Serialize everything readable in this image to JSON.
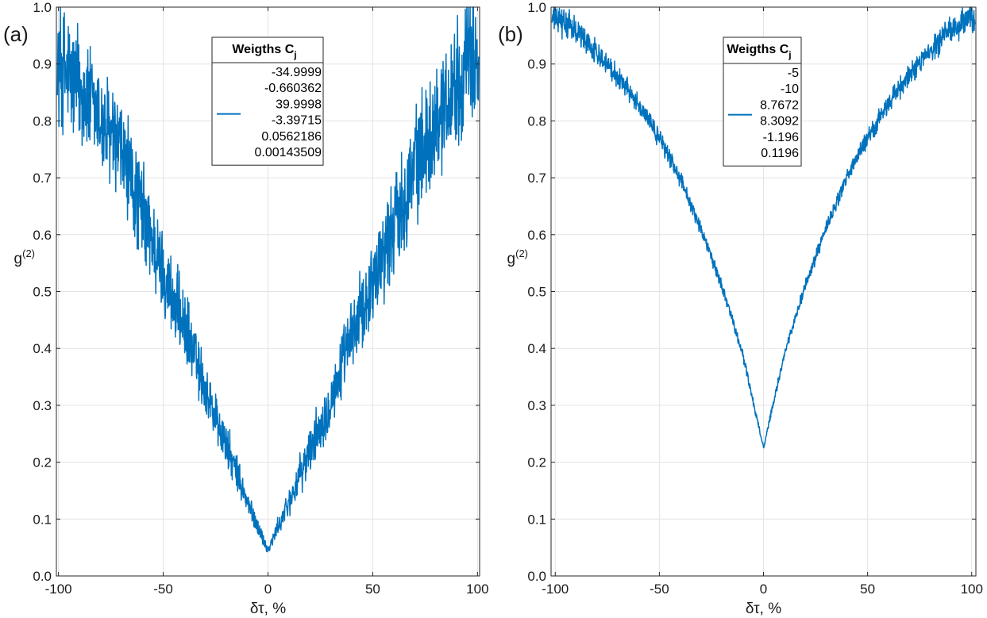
{
  "chart_data": [
    {
      "type": "line",
      "panel_label": "(a)",
      "xlabel": "δτ, %",
      "ylabel": "g",
      "ylabel_superscript": "(2)",
      "xlim": [
        -101,
        101
      ],
      "ylim": [
        0,
        1
      ],
      "xticks": [
        -100,
        -50,
        0,
        50,
        100
      ],
      "xtick_labels": [
        "-100",
        "-50",
        "0",
        "50",
        "100"
      ],
      "yticks": [
        0,
        0.1,
        0.2,
        0.3,
        0.4,
        0.5,
        0.6,
        0.7,
        0.8,
        0.9,
        1.0
      ],
      "ytick_labels": [
        "0.0",
        "0.1",
        "0.2",
        "0.3",
        "0.4",
        "0.5",
        "0.6",
        "0.7",
        "0.8",
        "0.9",
        "1.0"
      ],
      "grid": true,
      "color": "#0072bd",
      "legend": {
        "title": "Weigths C",
        "title_subscript": "j",
        "entries": [
          "-34.9999",
          "-0.660362",
          "39.9998",
          "-3.39715",
          "0.0562186",
          "0.00143509"
        ]
      },
      "series": [
        {
          "name": "g2",
          "x": [
            -100,
            -90,
            -80,
            -70,
            -60,
            -50,
            -40,
            -30,
            -20,
            -10,
            0,
            10,
            20,
            30,
            40,
            50,
            60,
            70,
            80,
            90,
            100
          ],
          "y": [
            0.9,
            0.86,
            0.8,
            0.74,
            0.64,
            0.53,
            0.44,
            0.33,
            0.23,
            0.13,
            0.045,
            0.13,
            0.22,
            0.31,
            0.42,
            0.52,
            0.62,
            0.72,
            0.8,
            0.87,
            0.92
          ],
          "noise_amplitude": [
            0.14,
            0.13,
            0.12,
            0.12,
            0.11,
            0.09,
            0.08,
            0.06,
            0.05,
            0.03,
            0.01,
            0.03,
            0.05,
            0.06,
            0.08,
            0.09,
            0.11,
            0.12,
            0.12,
            0.13,
            0.14
          ]
        }
      ]
    },
    {
      "type": "line",
      "panel_label": "(b)",
      "xlabel": "δτ, %",
      "ylabel": "g",
      "ylabel_superscript": "(2)",
      "xlim": [
        -102,
        102
      ],
      "ylim": [
        0,
        1
      ],
      "xticks": [
        -100,
        -50,
        0,
        50,
        100
      ],
      "xtick_labels": [
        "-100",
        "-50",
        "0",
        "50",
        "100"
      ],
      "yticks": [
        0,
        0.1,
        0.2,
        0.3,
        0.4,
        0.5,
        0.6,
        0.7,
        0.8,
        0.9,
        1.0
      ],
      "ytick_labels": [
        "0.0",
        "0.1",
        "0.2",
        "0.3",
        "0.4",
        "0.5",
        "0.6",
        "0.7",
        "0.8",
        "0.9",
        "1.0"
      ],
      "grid": true,
      "color": "#0072bd",
      "legend": {
        "title": "Weigths C",
        "title_subscript": "j",
        "entries": [
          "-5",
          "-10",
          "8.7672",
          "8.3092",
          "-1.196",
          "0.1196"
        ]
      },
      "series": [
        {
          "name": "g2",
          "x": [
            -100,
            -90,
            -80,
            -70,
            -60,
            -50,
            -40,
            -30,
            -20,
            -10,
            0,
            10,
            20,
            30,
            40,
            50,
            60,
            70,
            80,
            90,
            100
          ],
          "y": [
            0.98,
            0.96,
            0.92,
            0.88,
            0.83,
            0.77,
            0.7,
            0.61,
            0.51,
            0.39,
            0.225,
            0.39,
            0.51,
            0.61,
            0.7,
            0.77,
            0.83,
            0.88,
            0.92,
            0.96,
            0.98
          ],
          "noise_amplitude": [
            0.03,
            0.03,
            0.025,
            0.025,
            0.02,
            0.02,
            0.018,
            0.015,
            0.012,
            0.01,
            0.005,
            0.01,
            0.012,
            0.015,
            0.018,
            0.02,
            0.02,
            0.025,
            0.025,
            0.03,
            0.03
          ]
        }
      ]
    }
  ]
}
